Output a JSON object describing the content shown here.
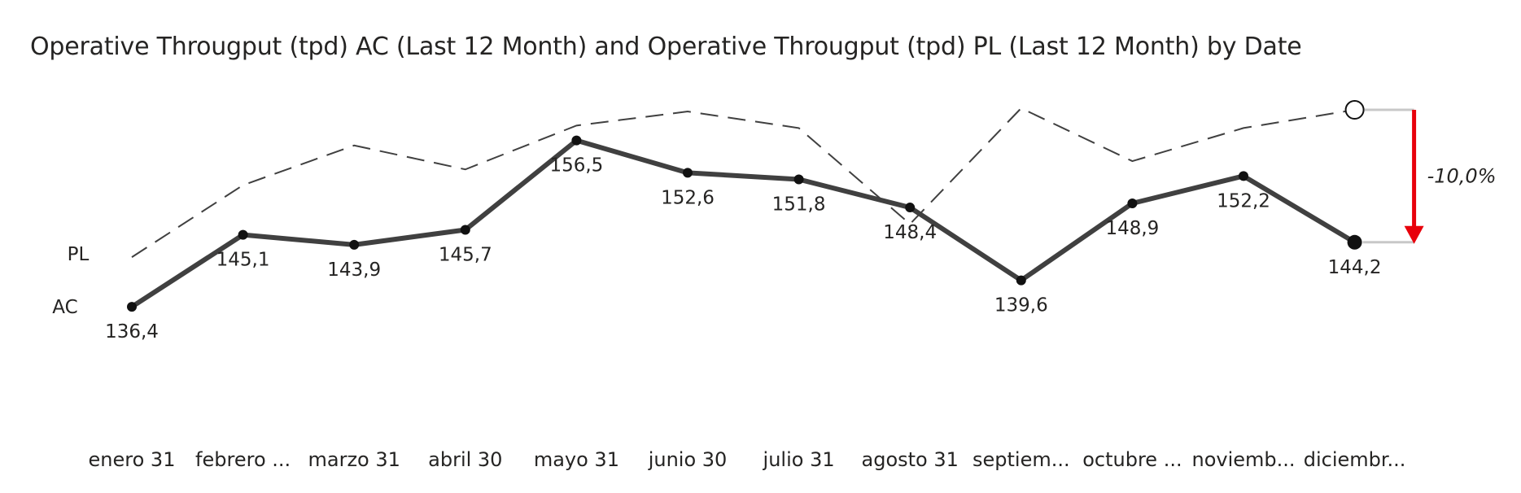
{
  "chart_data": {
    "type": "line",
    "title": "Operative Througput (tpd) AC (Last 12 Month) and Operative Througput (tpd) PL (Last 12 Month) by Date",
    "categories": [
      "enero 31",
      "febrero ...",
      "marzo 31",
      "abril 30",
      "mayo 31",
      "junio 30",
      "julio 31",
      "agosto 31",
      "septiem...",
      "octubre ...",
      "noviemb...",
      "diciembr..."
    ],
    "series": [
      {
        "name": "AC",
        "values": [
          136.4,
          145.1,
          143.9,
          145.7,
          156.5,
          152.6,
          151.8,
          148.4,
          139.6,
          148.9,
          152.2,
          144.2
        ],
        "data_labels": [
          "136,4",
          "145,1",
          "143,9",
          "145,7",
          "156,5",
          "152,6",
          "151,8",
          "148,4",
          "139,6",
          "148,9",
          "152,2",
          "144,2"
        ],
        "style": "solid",
        "color": "#404040"
      },
      {
        "name": "PL",
        "values": [
          142.4,
          151.1,
          155.9,
          153.0,
          158.3,
          160.0,
          158.0,
          146.4,
          160.4,
          154.0,
          158.0,
          160.2
        ],
        "style": "dashed",
        "color": "#404040"
      }
    ],
    "ylim": [
      120,
      166
    ],
    "variance_label": "-10,0%",
    "variance_color": "#e8000b",
    "grid": false,
    "legend": "inline-left"
  }
}
